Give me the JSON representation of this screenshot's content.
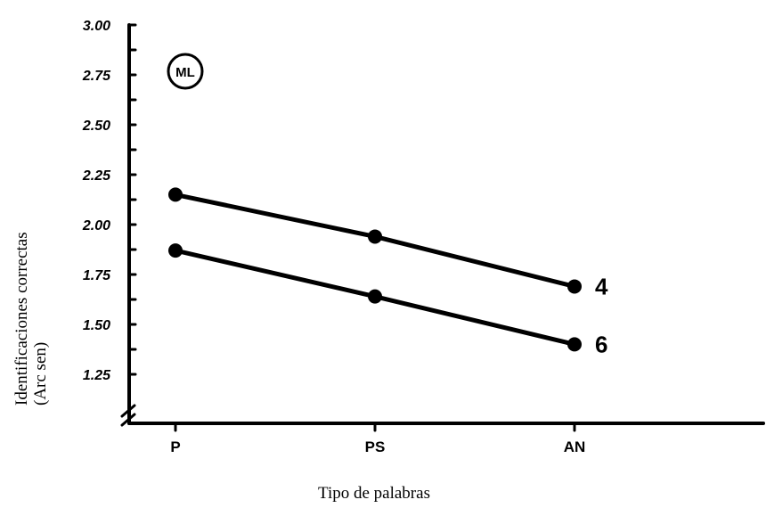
{
  "chart_data": {
    "type": "line",
    "annotation": "ML",
    "categories": [
      "P",
      "PS",
      "AN"
    ],
    "series": [
      {
        "name": "4",
        "values": [
          2.15,
          1.94,
          1.69
        ]
      },
      {
        "name": "6",
        "values": [
          1.87,
          1.64,
          1.4
        ]
      }
    ],
    "xlabel": "Tipo de palabras",
    "ylabel": "Identificaciones correctas",
    "ylabel_unit": "(Arc sen)",
    "yticks": [
      {
        "value": 3.0,
        "label": "3.00"
      },
      {
        "value": 2.75,
        "label": "2.75"
      },
      {
        "value": 2.5,
        "label": "2.50"
      },
      {
        "value": 2.25,
        "label": "2.25"
      },
      {
        "value": 2.0,
        "label": "2.00"
      },
      {
        "value": 1.75,
        "label": "1.75"
      },
      {
        "value": 1.5,
        "label": "1.50"
      },
      {
        "value": 1.25,
        "label": "1.25"
      }
    ],
    "ylim": [
      1.25,
      3.0
    ],
    "minor_tick_step": 0.125,
    "y_axis_break": true,
    "grid": false,
    "colors": {
      "line": "#000000",
      "background": "#ffffff"
    }
  }
}
